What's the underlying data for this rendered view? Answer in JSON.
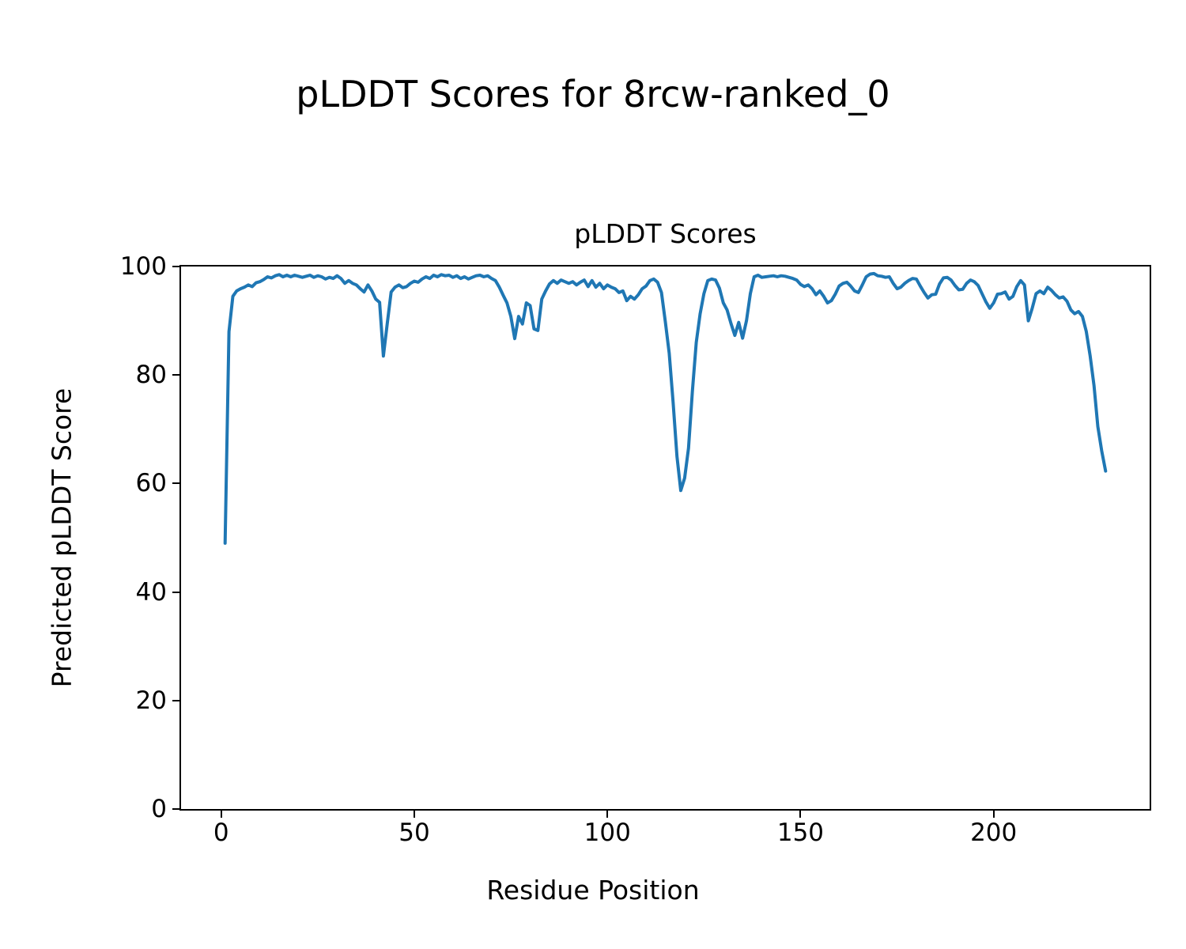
{
  "figure": {
    "suptitle": "pLDDT Scores for 8rcw-ranked_0"
  },
  "chart_data": {
    "type": "line",
    "title": "pLDDT Scores",
    "xlabel": "Residue Position",
    "ylabel": "Predicted pLDDT Score",
    "line_color": "#1f77b4",
    "line_width": 4,
    "xlim": [
      -10.4,
      240.4
    ],
    "ylim": [
      0,
      100
    ],
    "xticks": [
      0,
      50,
      100,
      150,
      200
    ],
    "yticks": [
      0,
      20,
      40,
      60,
      80,
      100
    ],
    "x_start": 1,
    "x_step": 1,
    "x_end": 229,
    "grid": false,
    "legend": null,
    "values": [
      49.0,
      88.0,
      94.5,
      95.5,
      95.9,
      96.2,
      96.6,
      96.3,
      97.0,
      97.2,
      97.6,
      98.1,
      97.9,
      98.3,
      98.5,
      98.1,
      98.4,
      98.1,
      98.4,
      98.2,
      98.0,
      98.2,
      98.4,
      98.0,
      98.3,
      98.1,
      97.7,
      98.0,
      97.8,
      98.3,
      97.8,
      96.9,
      97.4,
      96.9,
      96.6,
      95.9,
      95.3,
      96.6,
      95.5,
      94.0,
      93.4,
      83.5,
      89.5,
      95.3,
      96.2,
      96.6,
      96.1,
      96.3,
      96.9,
      97.3,
      97.1,
      97.7,
      98.1,
      97.8,
      98.4,
      98.1,
      98.5,
      98.3,
      98.4,
      98.0,
      98.3,
      97.8,
      98.1,
      97.7,
      98.0,
      98.3,
      98.4,
      98.1,
      98.3,
      97.8,
      97.4,
      96.2,
      94.7,
      93.3,
      90.8,
      86.7,
      90.8,
      89.4,
      93.3,
      92.8,
      88.5,
      88.2,
      94.0,
      95.5,
      96.8,
      97.4,
      96.9,
      97.5,
      97.2,
      96.9,
      97.2,
      96.6,
      97.1,
      97.5,
      96.3,
      97.4,
      96.2,
      96.9,
      95.9,
      96.6,
      96.2,
      95.9,
      95.2,
      95.5,
      93.7,
      94.5,
      94.0,
      94.8,
      95.9,
      96.4,
      97.4,
      97.7,
      97.1,
      95.2,
      89.8,
      84.0,
      75.0,
      65.0,
      58.7,
      61.0,
      66.5,
      77.0,
      86.0,
      91.3,
      95.0,
      97.4,
      97.7,
      97.5,
      96.0,
      93.3,
      92.0,
      89.5,
      87.3,
      89.7,
      86.8,
      90.0,
      95.0,
      98.1,
      98.4,
      98.0,
      98.1,
      98.2,
      98.3,
      98.1,
      98.3,
      98.2,
      98.0,
      97.8,
      97.5,
      96.7,
      96.3,
      96.6,
      95.9,
      94.8,
      95.5,
      94.5,
      93.3,
      93.7,
      94.9,
      96.4,
      96.9,
      97.1,
      96.4,
      95.5,
      95.2,
      96.6,
      98.1,
      98.6,
      98.7,
      98.3,
      98.2,
      98.0,
      98.1,
      96.9,
      95.9,
      96.2,
      96.9,
      97.4,
      97.8,
      97.7,
      96.4,
      95.2,
      94.2,
      94.8,
      94.9,
      96.8,
      97.9,
      98.0,
      97.5,
      96.5,
      95.7,
      95.8,
      96.9,
      97.5,
      97.2,
      96.5,
      95.0,
      93.5,
      92.3,
      93.3,
      94.9,
      95.0,
      95.3,
      94.0,
      94.5,
      96.3,
      97.4,
      96.6,
      90.0,
      92.3,
      95.0,
      95.5,
      95.0,
      96.2,
      95.6,
      94.8,
      94.2,
      94.4,
      93.6,
      92.0,
      91.3,
      91.7,
      90.8,
      88.0,
      83.5,
      78.0,
      70.5,
      66.0,
      62.3
    ]
  }
}
